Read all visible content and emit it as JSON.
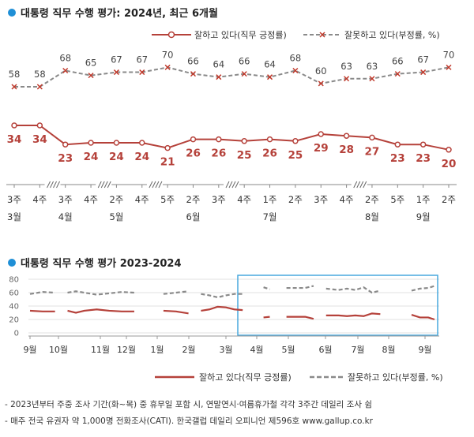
{
  "colors": {
    "positive": "#b5413a",
    "negative": "#8a8a8a",
    "accent": "#1f8fd6",
    "highlight": "#49a9dd"
  },
  "chart1": {
    "title": "대통령 직무 수행 평가: 2024년, 최근 6개월",
    "legend_positive": "잘하고 있다(직무 긍정률)",
    "legend_negative": "잘못하고 있다(부정률, %)"
  },
  "chart2": {
    "title": "대통령 직무 수행 평가 2023-2024",
    "legend_positive": "잘하고 있다(직무 긍정률)",
    "legend_negative": "잘못하고 있다(부정률, %)"
  },
  "footnotes": [
    "- 2023년부터 주중 조사 기간(화~목) 중 휴무일 포함 시, 연말연시·여름휴가철 각각 3주간 데일리 조사 쉼",
    "- 매주 전국 유권자 약 1,000명 전화조사(CATI). 한국갤럽 데일리 오피니언 제596호 www.gallup.co.kr"
  ],
  "chart_data": [
    {
      "type": "line",
      "title": "대통령 직무 수행 평가: 2024년, 최근 6개월",
      "x": [
        "3주",
        "4주",
        "3주",
        "4주",
        "2주",
        "4주",
        "5주",
        "2주",
        "3주",
        "4주",
        "1주",
        "2주",
        "3주",
        "4주",
        "2주",
        "5주",
        "1주",
        "2주"
      ],
      "month_labels": [
        {
          "index": 0,
          "label": "3월"
        },
        {
          "index": 2,
          "label": "4월"
        },
        {
          "index": 4,
          "label": "5월"
        },
        {
          "index": 7,
          "label": "6월"
        },
        {
          "index": 10,
          "label": "7월"
        },
        {
          "index": 14,
          "label": "8월"
        },
        {
          "index": 16,
          "label": "9월"
        }
      ],
      "axis_breaks_after_index": [
        1,
        3,
        5,
        8,
        13
      ],
      "series": [
        {
          "name": "잘하고 있다(직무 긍정률)",
          "values": [
            34,
            34,
            23,
            24,
            24,
            24,
            21,
            26,
            26,
            25,
            26,
            25,
            29,
            28,
            27,
            23,
            23,
            20
          ]
        },
        {
          "name": "잘못하고 있다(부정률, %)",
          "values": [
            58,
            58,
            68,
            65,
            67,
            67,
            70,
            66,
            64,
            66,
            64,
            68,
            60,
            63,
            63,
            66,
            67,
            70
          ]
        }
      ]
    },
    {
      "type": "line",
      "title": "대통령 직무 수행 평가 2023-2024",
      "ylim": [
        0,
        80
      ],
      "yticks": [
        0,
        20,
        40,
        60,
        80
      ],
      "x_labels": [
        "9월",
        "10월",
        "11월",
        "12월",
        "1월",
        "2월",
        "3월",
        "4월",
        "5월",
        "6월",
        "7월",
        "8월",
        "9월"
      ],
      "highlight_range": [
        "3월",
        "9월"
      ],
      "series": [
        {
          "name": "잘하고 있다(직무 긍정률)",
          "segments": [
            [
              [
                0,
                33
              ],
              [
                0.6,
                32
              ],
              [
                1.2,
                32
              ]
            ],
            [
              [
                1.8,
                33
              ],
              [
                2.2,
                30
              ],
              [
                2.6,
                33
              ],
              [
                3.2,
                35
              ],
              [
                3.8,
                33
              ],
              [
                4.4,
                32
              ],
              [
                5.0,
                32
              ]
            ],
            [
              [
                6.4,
                33
              ],
              [
                7.0,
                32
              ],
              [
                7.6,
                29
              ]
            ],
            [
              [
                8.2,
                33
              ],
              [
                8.6,
                35
              ],
              [
                9.0,
                39
              ],
              [
                9.4,
                38
              ],
              [
                9.8,
                35
              ],
              [
                10.2,
                34
              ]
            ],
            [
              [
                11.2,
                23
              ],
              [
                11.5,
                24
              ]
            ],
            [
              [
                12.3,
                24
              ],
              [
                12.8,
                24
              ],
              [
                13.2,
                24
              ],
              [
                13.6,
                21
              ]
            ],
            [
              [
                14.2,
                26
              ],
              [
                14.8,
                26
              ],
              [
                15.2,
                25
              ],
              [
                15.6,
                26
              ],
              [
                16.0,
                25
              ],
              [
                16.4,
                29
              ],
              [
                16.8,
                28
              ]
            ],
            [
              [
                18.3,
                27
              ],
              [
                18.7,
                23
              ],
              [
                19.1,
                23
              ],
              [
                19.4,
                20
              ]
            ]
          ]
        },
        {
          "name": "잘못하고 있다(부정률, %)",
          "segments": [
            [
              [
                0,
                58
              ],
              [
                0.6,
                61
              ],
              [
                1.2,
                60
              ]
            ],
            [
              [
                1.8,
                60
              ],
              [
                2.2,
                62
              ],
              [
                2.6,
                60
              ],
              [
                3.2,
                57
              ],
              [
                3.8,
                59
              ],
              [
                4.4,
                61
              ],
              [
                5.0,
                60
              ]
            ],
            [
              [
                6.4,
                58
              ],
              [
                7.0,
                60
              ],
              [
                7.6,
                62
              ]
            ],
            [
              [
                8.2,
                58
              ],
              [
                8.6,
                56
              ],
              [
                9.0,
                53
              ],
              [
                9.4,
                56
              ],
              [
                9.8,
                58
              ],
              [
                10.2,
                58
              ]
            ],
            [
              [
                11.2,
                68
              ],
              [
                11.5,
                65
              ]
            ],
            [
              [
                12.3,
                67
              ],
              [
                12.8,
                67
              ],
              [
                13.2,
                67
              ],
              [
                13.6,
                70
              ]
            ],
            [
              [
                14.2,
                66
              ],
              [
                14.8,
                64
              ],
              [
                15.2,
                66
              ],
              [
                15.6,
                64
              ],
              [
                16.0,
                68
              ],
              [
                16.4,
                60
              ],
              [
                16.8,
                63
              ]
            ],
            [
              [
                18.3,
                63
              ],
              [
                18.7,
                66
              ],
              [
                19.1,
                67
              ],
              [
                19.4,
                70
              ]
            ]
          ]
        }
      ]
    }
  ]
}
